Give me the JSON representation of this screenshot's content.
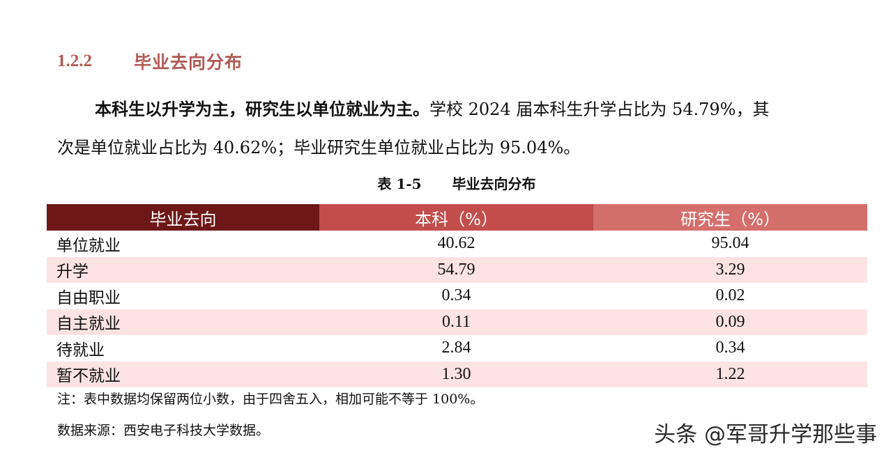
{
  "section": {
    "number": "1.2.2",
    "title": "毕业去向分布"
  },
  "paragraph": {
    "bold_lead": "本科生以升学为主，研究生以单位就业为主。",
    "line1_rest": "学校 2024 届本科生升学占比为 54.79%，其",
    "line2": "次是单位就业占比为 40.62%；毕业研究生单位就业占比为 95.04%。"
  },
  "table": {
    "caption_number": "表 1-5",
    "caption_title": "毕业去向分布",
    "headers": [
      "毕业去向",
      "本科（%）",
      "研究生（%）"
    ],
    "rows": [
      {
        "category": "单位就业",
        "undergrad": "40.62",
        "graduate": "95.04"
      },
      {
        "category": "升学",
        "undergrad": "54.79",
        "graduate": "3.29"
      },
      {
        "category": "自由职业",
        "undergrad": "0.34",
        "graduate": "0.02"
      },
      {
        "category": "自主就业",
        "undergrad": "0.11",
        "graduate": "0.09"
      },
      {
        "category": "待就业",
        "undergrad": "2.84",
        "graduate": "0.34"
      },
      {
        "category": "暂不就业",
        "undergrad": "1.30",
        "graduate": "1.22"
      }
    ]
  },
  "note": "注：表中数据均保留两位小数，由于四舍五入，相加可能不等于 100%。",
  "source": "数据来源：西安电子科技大学数据。",
  "watermark": "头条 @军哥升学那些事",
  "colors": {
    "heading": "#b25a55",
    "header_col1": "#6e1717",
    "header_col2": "#c24d4b",
    "header_col3": "#d46f6c",
    "row_shade": "#fde3e3"
  }
}
